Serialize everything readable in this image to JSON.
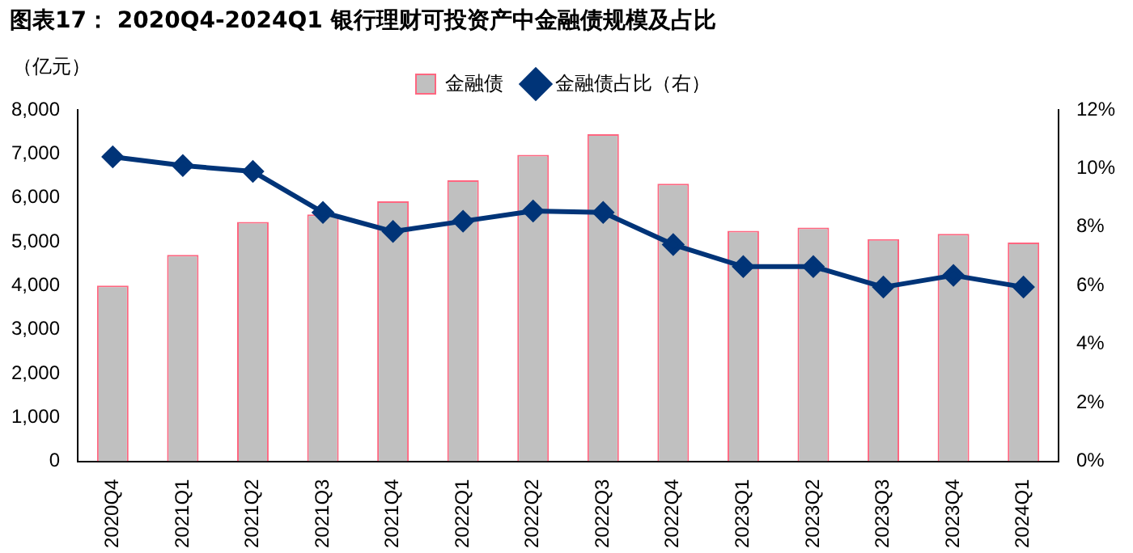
{
  "chart_data": {
    "type": "bar",
    "title": "图表17：  2020Q4-2024Q1 银行理财可投资产中金融债规模及占比",
    "ylabel": "（亿元）",
    "categories": [
      "2020Q4",
      "2021Q1",
      "2021Q2",
      "2021Q3",
      "2021Q4",
      "2022Q1",
      "2022Q2",
      "2022Q3",
      "2022Q4",
      "2023Q1",
      "2023Q2",
      "2023Q3",
      "2023Q4",
      "2024Q1"
    ],
    "series": [
      {
        "name": "金融债",
        "color": "#c0c0c0",
        "values": [
          4000,
          4700,
          5450,
          5620,
          5920,
          6400,
          6980,
          7450,
          6320,
          5250,
          5320,
          5060,
          5180,
          4980
        ]
      },
      {
        "name": "金融债占比（右）",
        "type": "line",
        "axis": "y2",
        "color": "#003478",
        "values": [
          10.4,
          10.1,
          9.9,
          8.5,
          7.85,
          8.2,
          8.55,
          8.5,
          7.4,
          6.65,
          6.65,
          5.95,
          6.35,
          5.95
        ]
      }
    ],
    "ylim": [
      0,
      8000
    ],
    "yticks": [
      {
        "value": 0,
        "label": "0"
      },
      {
        "value": 1000,
        "label": "1,000"
      },
      {
        "value": 2000,
        "label": "2,000"
      },
      {
        "value": 3000,
        "label": "3,000"
      },
      {
        "value": 4000,
        "label": "4,000"
      },
      {
        "value": 5000,
        "label": "5,000"
      },
      {
        "value": 6000,
        "label": "6,000"
      },
      {
        "value": 7000,
        "label": "7,000"
      },
      {
        "value": 8000,
        "label": "8,000"
      }
    ],
    "y2lim": [
      0,
      12
    ],
    "y2ticks": [
      {
        "value": 0,
        "label": "0%"
      },
      {
        "value": 2,
        "label": "2%"
      },
      {
        "value": 4,
        "label": "4%"
      },
      {
        "value": 6,
        "label": "6%"
      },
      {
        "value": 8,
        "label": "8%"
      },
      {
        "value": 10,
        "label": "10%"
      },
      {
        "value": 12,
        "label": "12%"
      }
    ],
    "grid": false,
    "legend": "top",
    "marker": "diamond",
    "line_style": "solid"
  }
}
